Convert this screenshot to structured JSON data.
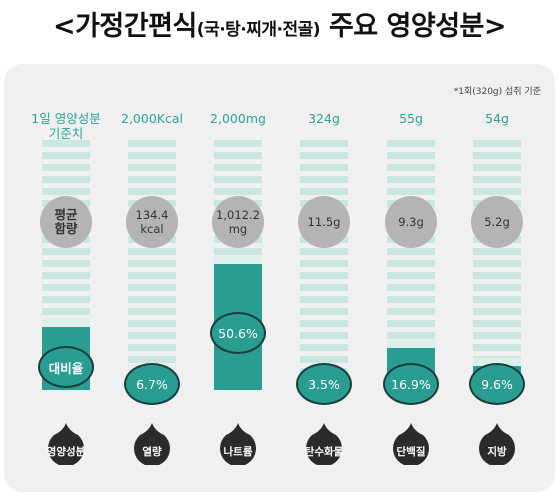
{
  "title": {
    "main_before": "<가정간편식",
    "sub": "(국·탕·찌개·전골)",
    "main_after": " 주요 영양성분>"
  },
  "note": "*1회(320g) 섭취 기준",
  "colors": {
    "accent": "#2a9d92",
    "stripe": "#c9e6e0",
    "dark": "#2b2b2b",
    "avg_circle": "#b4b4b4",
    "panel": "#f0f0f0"
  },
  "reference_column": {
    "header": "1일 영양성분\n기준치",
    "avg_label": "평균\n함량",
    "pct_label": "대비율",
    "name": "영양성분"
  },
  "chart_data": {
    "type": "bar",
    "title": "가정간편식(국·탕·찌개·전골) 주요 영양성분",
    "categories": [
      "열량",
      "나트륨",
      "탄수화물",
      "단백질",
      "지방"
    ],
    "daily_reference": [
      "2,000Kcal",
      "2,000mg",
      "324g",
      "55g",
      "54g"
    ],
    "average_content": [
      "134.4\nkcal",
      "1,012.2\nmg",
      "11.5g",
      "9.3g",
      "5.2g"
    ],
    "values": [
      6.7,
      50.6,
      3.5,
      16.9,
      9.6
    ],
    "value_labels": [
      "6.7%",
      "50.6%",
      "3.5%",
      "16.9%",
      "9.6%"
    ],
    "unit": "%",
    "ylim": [
      0,
      100
    ]
  }
}
